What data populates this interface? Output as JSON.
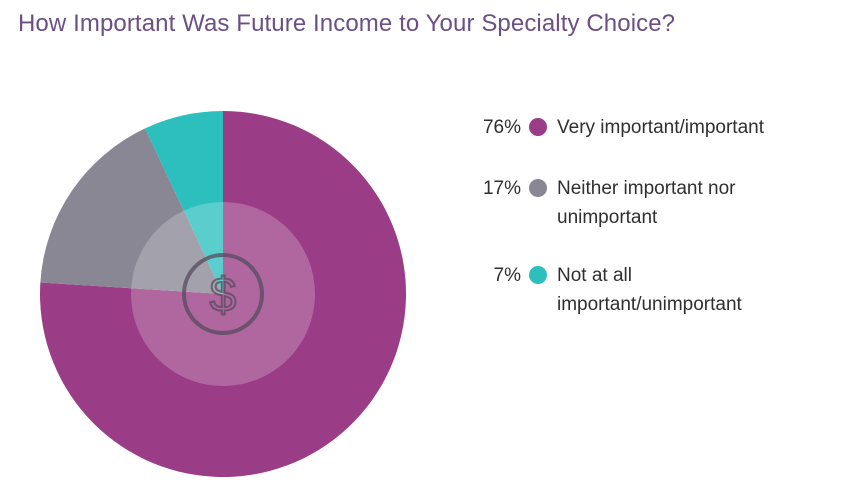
{
  "title": "How Important Was Future Income to Your Specialty Choice?",
  "chart_data": {
    "type": "pie",
    "categories": [
      "Very important/important",
      "Neither important nor unimportant",
      "Not at all important/unimportant"
    ],
    "values": [
      76,
      17,
      7
    ],
    "value_labels": [
      "76%",
      "17%",
      "7%"
    ],
    "colors": [
      "#9a3d86",
      "#8a8795",
      "#2dbfbe"
    ],
    "legend_position": "right",
    "center_icon": "dollar-icon"
  }
}
